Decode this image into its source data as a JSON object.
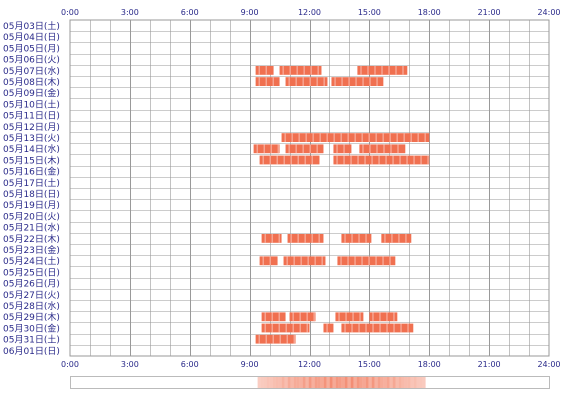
{
  "chart_data": {
    "type": "heatmap",
    "x_ticks": [
      "0:00",
      "3:00",
      "6:00",
      "9:00",
      "12:00",
      "15:00",
      "18:00",
      "21:00",
      "24:00"
    ],
    "x_range_hours": [
      0,
      24
    ],
    "rows": [
      {
        "label": "05月03日(土)",
        "segments": []
      },
      {
        "label": "05月04日(日)",
        "segments": []
      },
      {
        "label": "05月05日(月)",
        "segments": []
      },
      {
        "label": "05月06日(火)",
        "segments": []
      },
      {
        "label": "05月07日(水)",
        "segments": [
          [
            9.3,
            10.2
          ],
          [
            10.5,
            12.6
          ],
          [
            14.4,
            16.9
          ]
        ]
      },
      {
        "label": "05月08日(木)",
        "segments": [
          [
            9.3,
            10.5
          ],
          [
            10.8,
            12.9
          ],
          [
            13.1,
            15.7
          ]
        ]
      },
      {
        "label": "05月09日(金)",
        "segments": []
      },
      {
        "label": "05月10日(土)",
        "segments": []
      },
      {
        "label": "05月11日(日)",
        "segments": []
      },
      {
        "label": "05月12日(月)",
        "segments": []
      },
      {
        "label": "05月13日(火)",
        "segments": [
          [
            10.6,
            18.0
          ]
        ]
      },
      {
        "label": "05月14日(水)",
        "segments": [
          [
            9.2,
            10.5
          ],
          [
            10.8,
            12.7
          ],
          [
            13.2,
            14.1
          ],
          [
            14.5,
            16.8
          ]
        ]
      },
      {
        "label": "05月15日(木)",
        "segments": [
          [
            9.5,
            12.5
          ],
          [
            13.2,
            18.0
          ]
        ]
      },
      {
        "label": "05月16日(金)",
        "segments": []
      },
      {
        "label": "05月17日(土)",
        "segments": []
      },
      {
        "label": "05月18日(日)",
        "segments": []
      },
      {
        "label": "05月19日(月)",
        "segments": []
      },
      {
        "label": "05月20日(火)",
        "segments": []
      },
      {
        "label": "05月21日(水)",
        "segments": []
      },
      {
        "label": "05月22日(木)",
        "segments": [
          [
            9.6,
            10.6
          ],
          [
            10.9,
            12.7
          ],
          [
            13.6,
            15.1
          ],
          [
            15.6,
            17.1
          ]
        ]
      },
      {
        "label": "05月23日(金)",
        "segments": []
      },
      {
        "label": "05月24日(土)",
        "segments": [
          [
            9.5,
            10.4
          ],
          [
            10.7,
            12.8
          ],
          [
            13.4,
            16.3
          ]
        ]
      },
      {
        "label": "05月25日(日)",
        "segments": []
      },
      {
        "label": "05月26日(月)",
        "segments": []
      },
      {
        "label": "05月27日(火)",
        "segments": []
      },
      {
        "label": "05月28日(水)",
        "segments": []
      },
      {
        "label": "05月29日(木)",
        "segments": [
          [
            9.6,
            10.8
          ],
          [
            11.0,
            12.3
          ],
          [
            13.3,
            14.7
          ],
          [
            15.0,
            16.4
          ]
        ]
      },
      {
        "label": "05月30日(金)",
        "segments": [
          [
            9.6,
            12.0
          ],
          [
            12.7,
            13.2
          ],
          [
            13.6,
            17.2
          ]
        ]
      },
      {
        "label": "05月31日(土)",
        "segments": [
          [
            9.3,
            11.3
          ]
        ]
      },
      {
        "label": "06月01日(日)",
        "segments": []
      }
    ],
    "summary_bar": {
      "range_hours": [
        9.4,
        17.8
      ]
    },
    "colors": {
      "segment": "#f07050",
      "segment_light": "#f8b0a0",
      "grid": "#999999",
      "axis_text": "#2a2a8a",
      "summary_border": "#bbbbbb"
    }
  }
}
